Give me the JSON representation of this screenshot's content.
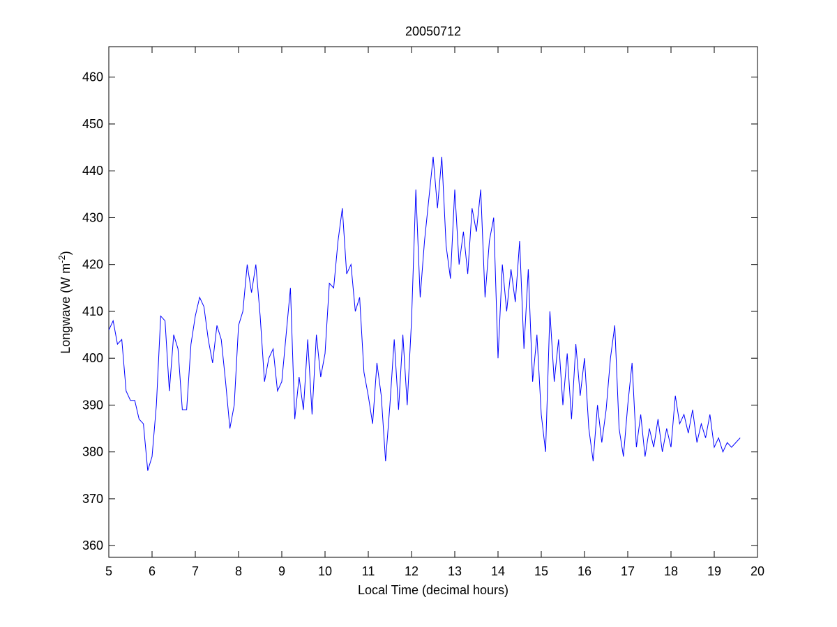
{
  "chart_data": {
    "type": "line",
    "title": "20050712",
    "xlabel": "Local Time (decimal hours)",
    "ylabel": [
      "Longwave (W m",
      "-2",
      ")"
    ],
    "xlim": [
      5,
      20
    ],
    "xticks": [
      5,
      6,
      7,
      8,
      9,
      10,
      11,
      12,
      13,
      14,
      15,
      16,
      17,
      18,
      19,
      20
    ],
    "ylim": [
      357.5,
      466.5
    ],
    "yticks": [
      360,
      370,
      380,
      390,
      400,
      410,
      420,
      430,
      440,
      450,
      460
    ],
    "grid": false,
    "x": [
      5.0,
      5.1,
      5.2,
      5.3,
      5.4,
      5.5,
      5.6,
      5.7,
      5.8,
      5.9,
      6.0,
      6.1,
      6.2,
      6.3,
      6.4,
      6.5,
      6.6,
      6.7,
      6.8,
      6.9,
      7.0,
      7.1,
      7.2,
      7.3,
      7.4,
      7.5,
      7.6,
      7.7,
      7.8,
      7.9,
      8.0,
      8.1,
      8.2,
      8.3,
      8.4,
      8.5,
      8.6,
      8.7,
      8.8,
      8.9,
      9.0,
      9.1,
      9.2,
      9.3,
      9.4,
      9.5,
      9.6,
      9.7,
      9.8,
      9.9,
      10.0,
      10.1,
      10.2,
      10.3,
      10.4,
      10.5,
      10.6,
      10.7,
      10.8,
      10.9,
      11.0,
      11.1,
      11.2,
      11.3,
      11.4,
      11.5,
      11.6,
      11.7,
      11.8,
      11.9,
      12.0,
      12.1,
      12.2,
      12.3,
      12.4,
      12.5,
      12.6,
      12.7,
      12.8,
      12.9,
      13.0,
      13.1,
      13.2,
      13.3,
      13.4,
      13.5,
      13.6,
      13.7,
      13.8,
      13.9,
      14.0,
      14.1,
      14.2,
      14.3,
      14.4,
      14.5,
      14.6,
      14.7,
      14.8,
      14.9,
      15.0,
      15.1,
      15.2,
      15.3,
      15.4,
      15.5,
      15.6,
      15.7,
      15.8,
      15.9,
      16.0,
      16.1,
      16.2,
      16.3,
      16.4,
      16.5,
      16.6,
      16.7,
      16.8,
      16.9,
      17.0,
      17.1,
      17.2,
      17.3,
      17.4,
      17.5,
      17.6,
      17.7,
      17.8,
      17.9,
      18.0,
      18.1,
      18.2,
      18.3,
      18.4,
      18.5,
      18.6,
      18.7,
      18.8,
      18.9,
      19.0,
      19.1,
      19.2,
      19.3,
      19.4,
      19.5,
      19.6
    ],
    "series": [
      {
        "color": "#0000ff",
        "values": [
          406,
          408,
          403,
          404,
          393,
          391,
          391,
          387,
          386,
          376,
          379,
          390,
          409,
          408,
          393,
          405,
          402,
          389,
          389,
          403,
          409,
          413,
          411,
          404,
          399,
          407,
          404,
          395,
          385,
          390,
          407,
          410,
          420,
          414,
          420,
          409,
          395,
          400,
          402,
          393,
          395,
          405,
          415,
          387,
          396,
          389,
          404,
          388,
          405,
          396,
          401,
          416,
          415,
          425,
          432,
          418,
          420,
          410,
          413,
          397,
          392,
          386,
          399,
          392,
          378,
          390,
          404,
          389,
          405,
          390,
          408,
          436,
          413,
          425,
          434,
          443,
          432,
          443,
          424,
          417,
          436,
          420,
          427,
          418,
          432,
          427,
          436,
          413,
          425,
          430,
          400,
          420,
          410,
          419,
          412,
          425,
          402,
          419,
          395,
          405,
          388,
          380,
          410,
          395,
          404,
          390,
          401,
          387,
          403,
          392,
          400,
          385,
          378,
          390,
          382,
          389,
          400,
          407,
          385,
          379,
          390,
          399,
          381,
          388,
          379,
          385,
          381,
          387,
          380,
          385,
          381,
          392,
          386,
          388,
          384,
          389,
          382,
          386,
          383,
          388,
          381,
          383,
          380,
          382,
          381,
          382,
          383
        ]
      }
    ]
  }
}
